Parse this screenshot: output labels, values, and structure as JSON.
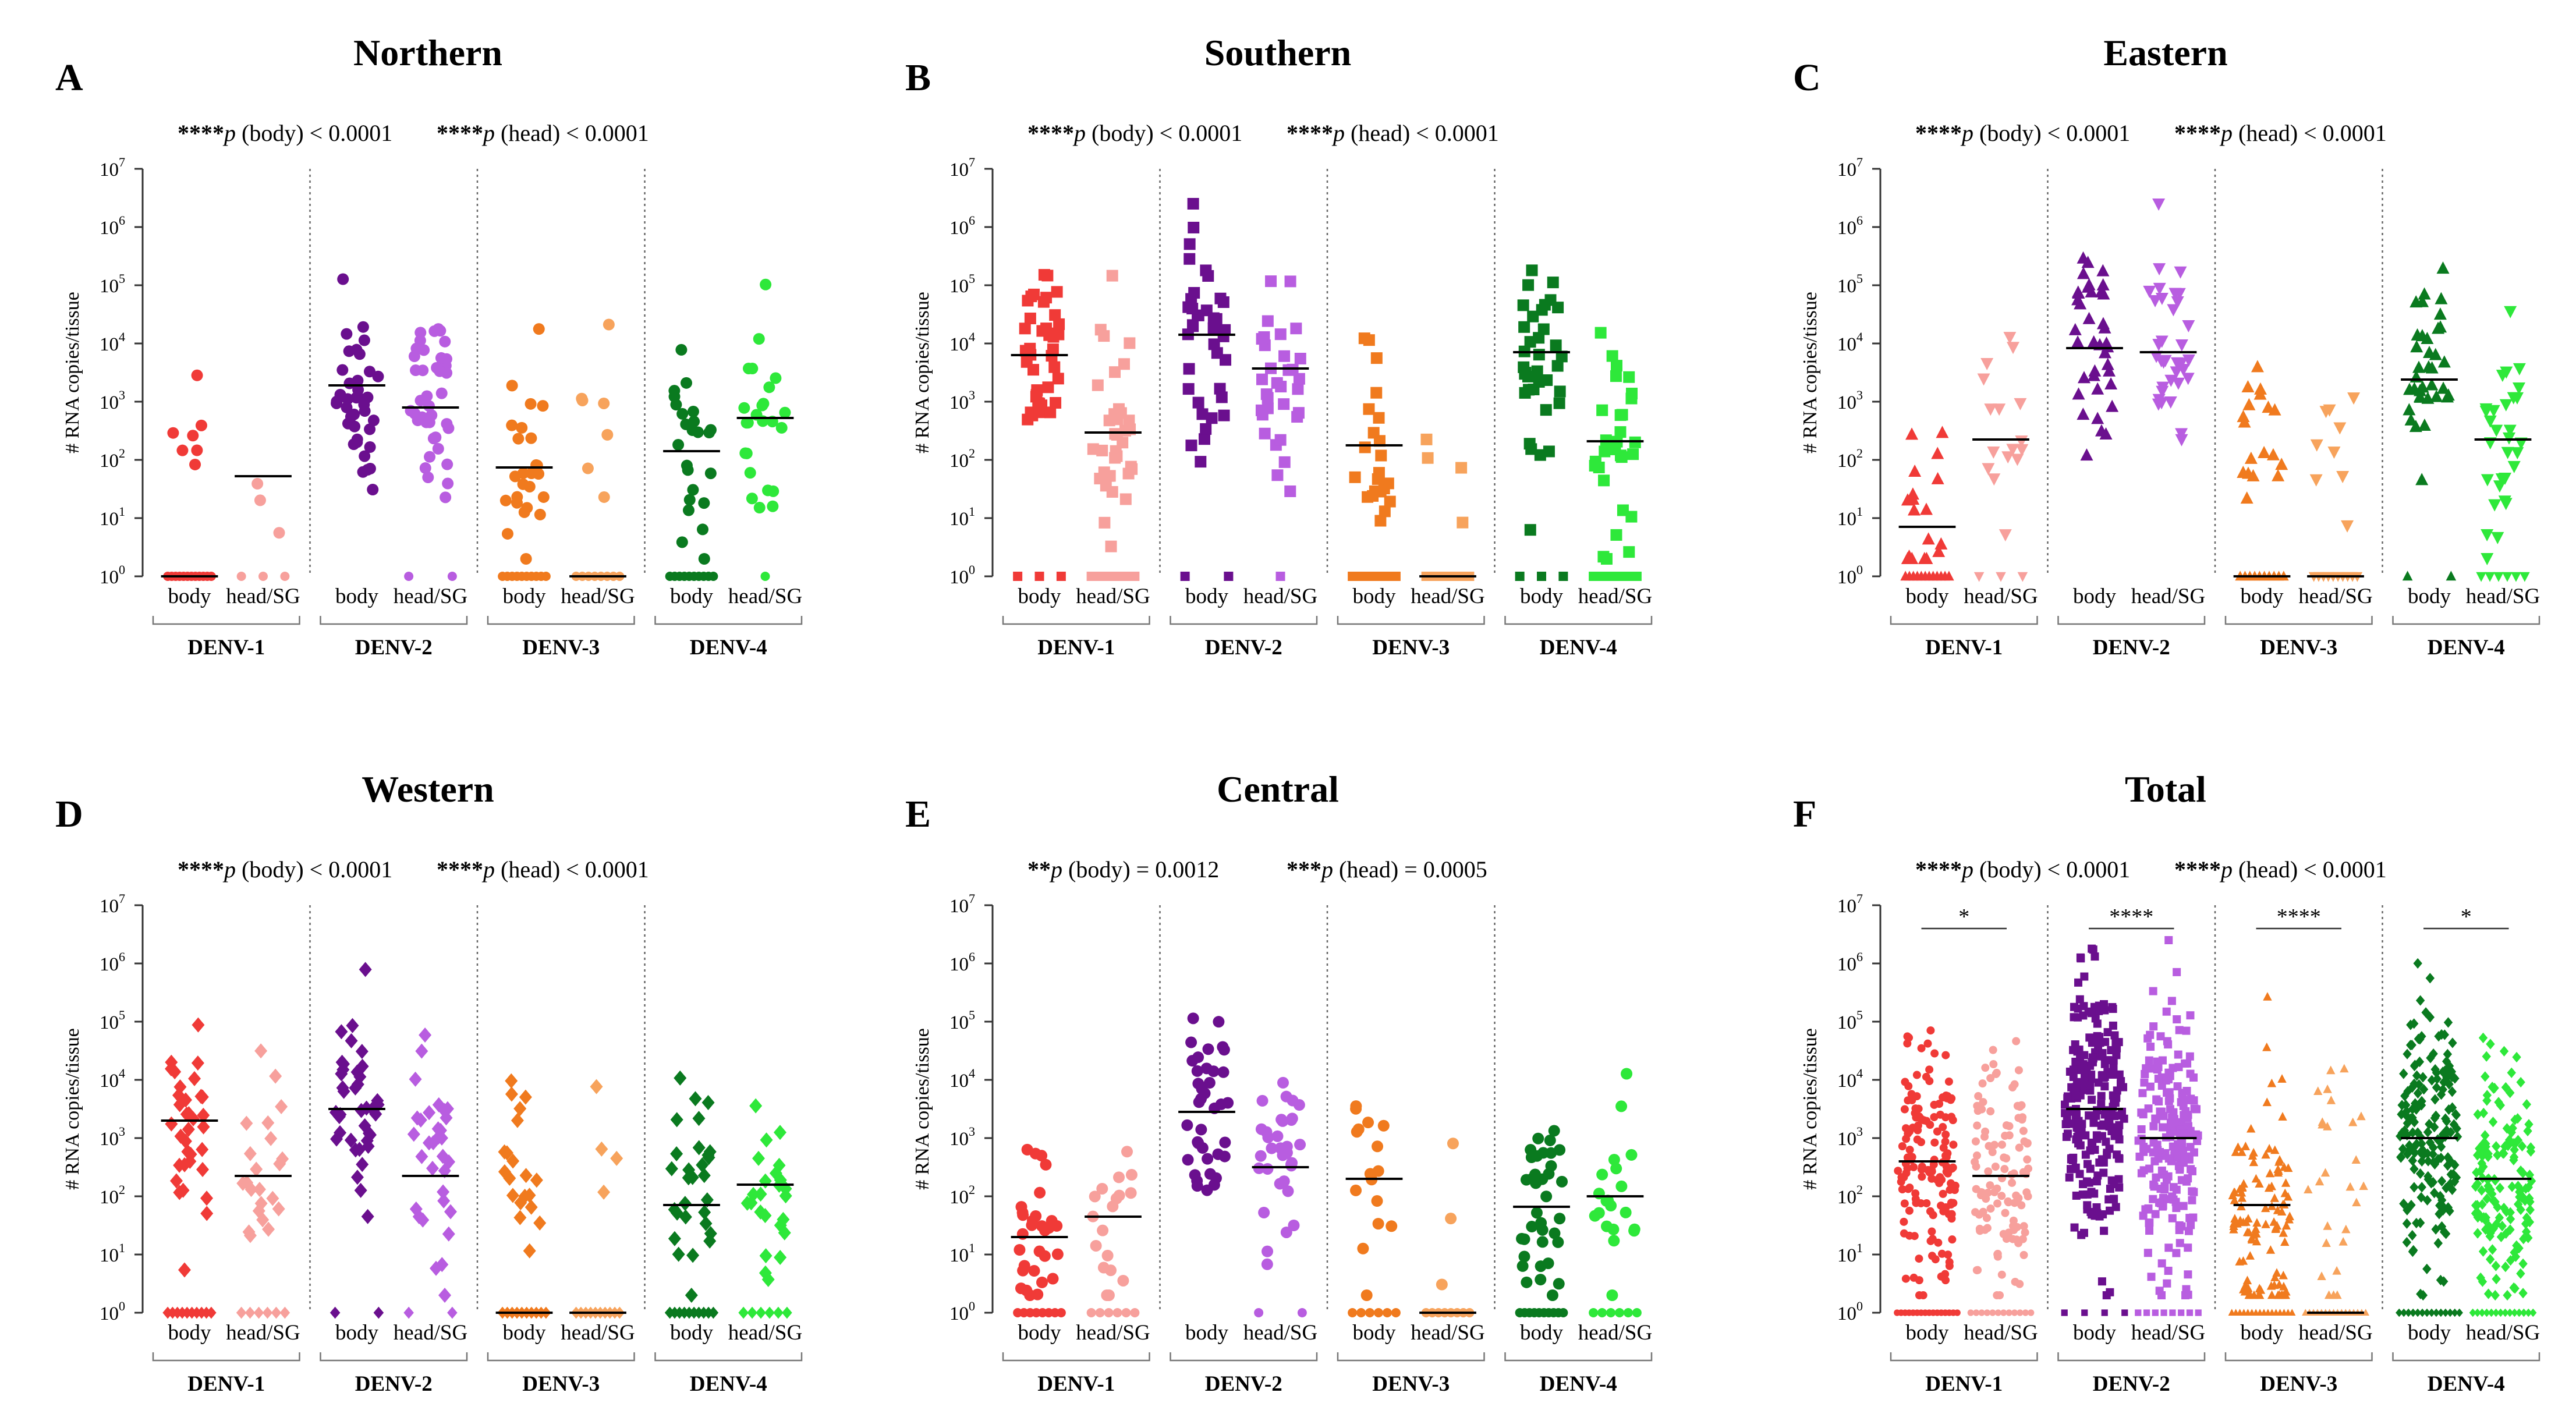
{
  "figure": {
    "y_axis_label": "# RNA copies/tissue",
    "y_tick_labels": [
      "10",
      "10",
      "10",
      "10",
      "10",
      "10",
      "10",
      "10"
    ],
    "y_tick_exponents": [
      "0",
      "1",
      "2",
      "3",
      "4",
      "5",
      "6",
      "7"
    ],
    "category_labels": [
      "body",
      "head/SG"
    ],
    "group_labels": [
      "DENV-1",
      "DENV-2",
      "DENV-3",
      "DENV-4"
    ]
  },
  "colors": {
    "DENV-1": {
      "body": "#f03a37",
      "head": "#f7a09c"
    },
    "DENV-2": {
      "body": "#6a0f8e",
      "head": "#b85de0"
    },
    "DENV-3": {
      "body": "#f07a1e",
      "head": "#f7a35c"
    },
    "DENV-4": {
      "body": "#0a7a1f",
      "head": "#2ee83a"
    }
  },
  "chart_data": [
    {
      "type": "scatter",
      "panel": "A",
      "title": "Northern",
      "marker": "circle",
      "p_stars_body": "****",
      "p_text_body": " (body) < 0.0001",
      "p_stars_head": "****",
      "p_text_head": " (head) < 0.0001",
      "ylabel": "# RNA copies/tissue",
      "yscale": "log10",
      "ylim": [
        1,
        10000000
      ],
      "groups": [
        {
          "name": "DENV-1",
          "body": {
            "n_values": 7,
            "median": 0,
            "zeros": 12
          },
          "head": {
            "n_values": 3,
            "median": 1.72,
            "zeros": 3
          }
        },
        {
          "name": "DENV-2",
          "body": {
            "n_values": 40,
            "median": 3.28,
            "zeros": 0
          },
          "head": {
            "n_values": 40,
            "median": 2.9,
            "zeros": 2
          }
        },
        {
          "name": "DENV-3",
          "body": {
            "n_values": 26,
            "median": 1.87,
            "zeros": 10
          },
          "head": {
            "n_values": 7,
            "median": 0,
            "zeros": 8
          }
        },
        {
          "name": "DENV-4",
          "body": {
            "n_values": 24,
            "median": 2.15,
            "zeros": 10
          },
          "head": {
            "n_values": 24,
            "median": 2.72,
            "zeros": 1
          }
        }
      ]
    },
    {
      "type": "scatter",
      "panel": "B",
      "title": "Southern",
      "marker": "square",
      "p_stars_body": "****",
      "p_text_body": " (body) < 0.0001",
      "p_stars_head": "****",
      "p_text_head": " (head) < 0.0001",
      "ylabel": "# RNA copies/tissue",
      "yscale": "log10",
      "ylim": [
        1,
        10000000
      ],
      "groups": [
        {
          "name": "DENV-1",
          "body": {
            "n_values": 40,
            "median": 3.8,
            "zeros": 3
          },
          "head": {
            "n_values": 35,
            "median": 2.47,
            "zeros": 6
          }
        },
        {
          "name": "DENV-2",
          "body": {
            "n_values": 38,
            "median": 4.15,
            "zeros": 2
          },
          "head": {
            "n_values": 32,
            "median": 3.57,
            "zeros": 1
          }
        },
        {
          "name": "DENV-3",
          "body": {
            "n_values": 22,
            "median": 2.25,
            "zeros": 10
          },
          "head": {
            "n_values": 4,
            "median": 0,
            "zeros": 10
          }
        },
        {
          "name": "DENV-4",
          "body": {
            "n_values": 36,
            "median": 3.85,
            "zeros": 3
          },
          "head": {
            "n_values": 30,
            "median": 2.32,
            "zeros": 10
          }
        }
      ]
    },
    {
      "type": "scatter",
      "panel": "C",
      "title": "Eastern",
      "marker": "triangle-up",
      "p_stars_body": "****",
      "p_text_body": " (body) < 0.0001",
      "p_stars_head": "****",
      "p_text_head": " (head) < 0.0001",
      "ylabel": "# RNA copies/tissue",
      "yscale": "log10",
      "ylim": [
        1,
        10000000
      ],
      "groups": [
        {
          "name": "DENV-1",
          "body": {
            "n_values": 18,
            "median": 0.85,
            "zeros": 12
          },
          "head": {
            "n_values": 16,
            "median": 2.35,
            "zeros": 3
          }
        },
        {
          "name": "DENV-2",
          "body": {
            "n_values": 38,
            "median": 3.92,
            "zeros": 0
          },
          "head": {
            "n_values": 35,
            "median": 3.85,
            "zeros": 0
          }
        },
        {
          "name": "DENV-3",
          "body": {
            "n_values": 18,
            "median": 0,
            "zeros": 10
          },
          "head": {
            "n_values": 9,
            "median": 0,
            "zeros": 10
          }
        },
        {
          "name": "DENV-4",
          "body": {
            "n_values": 36,
            "median": 3.38,
            "zeros": 2
          },
          "head": {
            "n_values": 30,
            "median": 2.35,
            "zeros": 6
          }
        }
      ]
    },
    {
      "type": "scatter",
      "panel": "D",
      "title": "Western",
      "marker": "diamond",
      "p_stars_body": "****",
      "p_text_body": " (body) < 0.0001",
      "p_stars_head": "****",
      "p_text_head": " (head) < 0.0001",
      "ylabel": "# RNA copies/tissue",
      "yscale": "log10",
      "ylim": [
        1,
        10000000
      ],
      "groups": [
        {
          "name": "DENV-1",
          "body": {
            "n_values": 34,
            "median": 3.3,
            "zeros": 10
          },
          "head": {
            "n_values": 22,
            "median": 2.35,
            "zeros": 6
          }
        },
        {
          "name": "DENV-2",
          "body": {
            "n_values": 40,
            "median": 3.5,
            "zeros": 2
          },
          "head": {
            "n_values": 32,
            "median": 2.35,
            "zeros": 2
          }
        },
        {
          "name": "DENV-3",
          "body": {
            "n_values": 20,
            "median": 0,
            "zeros": 10
          },
          "head": {
            "n_values": 4,
            "median": 0,
            "zeros": 10
          }
        },
        {
          "name": "DENV-4",
          "body": {
            "n_values": 30,
            "median": 1.85,
            "zeros": 10
          },
          "head": {
            "n_values": 24,
            "median": 2.2,
            "zeros": 6
          }
        }
      ]
    },
    {
      "type": "scatter",
      "panel": "E",
      "title": "Central",
      "marker": "circle",
      "p_stars_body": "**",
      "p_text_body": " (body) = 0.0012",
      "p_stars_head": "***",
      "p_text_head": " (head) = 0.0005",
      "ylabel": "# RNA copies/tissue",
      "yscale": "log10",
      "ylim": [
        1,
        10000000
      ],
      "groups": [
        {
          "name": "DENV-1",
          "body": {
            "n_values": 30,
            "median": 1.3,
            "zeros": 8
          },
          "head": {
            "n_values": 18,
            "median": 1.65,
            "zeros": 6
          }
        },
        {
          "name": "DENV-2",
          "body": {
            "n_values": 38,
            "median": 3.45,
            "zeros": 0
          },
          "head": {
            "n_values": 34,
            "median": 2.5,
            "zeros": 2
          }
        },
        {
          "name": "DENV-3",
          "body": {
            "n_values": 16,
            "median": 2.3,
            "zeros": 6
          },
          "head": {
            "n_values": 3,
            "median": 0,
            "zeros": 8
          }
        },
        {
          "name": "DENV-4",
          "body": {
            "n_values": 36,
            "median": 1.82,
            "zeros": 10
          },
          "head": {
            "n_values": 20,
            "median": 2.0,
            "zeros": 6
          }
        }
      ]
    },
    {
      "type": "scatter",
      "panel": "F",
      "title": "Total",
      "marker": "mixed",
      "p_stars_body": "****",
      "p_text_body": " (body) < 0.0001",
      "p_stars_head": "****",
      "p_text_head": " (head) < 0.0001",
      "ylabel": "# RNA copies/tissue",
      "yscale": "log10",
      "ylim": [
        1,
        10000000
      ],
      "pairwise_significance": [
        "*",
        "****",
        "****",
        "*"
      ],
      "groups": [
        {
          "name": "DENV-1",
          "body": {
            "n_values": 150,
            "median": 2.6,
            "zeros": 16
          },
          "head": {
            "n_values": 110,
            "median": 2.35,
            "zeros": 12
          }
        },
        {
          "name": "DENV-2",
          "body": {
            "n_values": 230,
            "median": 3.5,
            "zeros": 4
          },
          "head": {
            "n_values": 210,
            "median": 3.0,
            "zeros": 8
          }
        },
        {
          "name": "DENV-3",
          "body": {
            "n_values": 110,
            "median": 1.85,
            "zeros": 16
          },
          "head": {
            "n_values": 26,
            "median": 0,
            "zeros": 16
          }
        },
        {
          "name": "DENV-4",
          "body": {
            "n_values": 180,
            "median": 3.0,
            "zeros": 14
          },
          "head": {
            "n_values": 150,
            "median": 2.3,
            "zeros": 14
          }
        }
      ]
    }
  ]
}
